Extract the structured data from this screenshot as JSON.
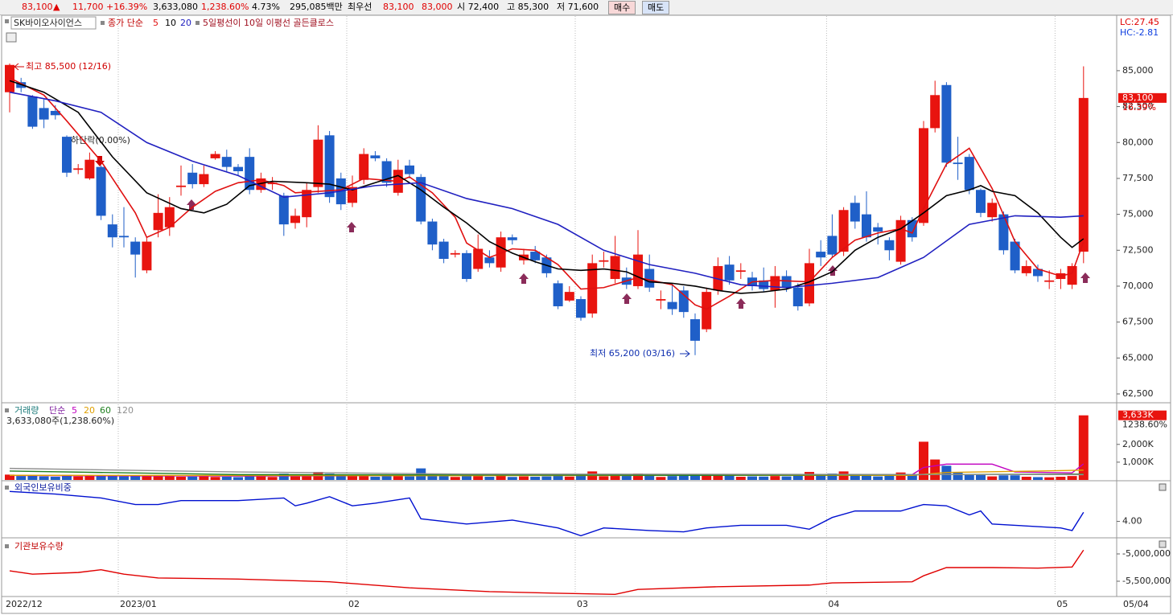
{
  "header": {
    "price": "83,100",
    "change_sign": "▲",
    "change": "11,700",
    "change_pct": "+16.39%",
    "volume": "3,633,080",
    "volume_ratio": "1,238.60%",
    "turnover": "4.73%",
    "amount": "295,085백만",
    "best_label": "최우선",
    "ask": "83,100",
    "bid": "83,000",
    "open": "시 72,400",
    "high": "고 85,300",
    "low": "저 71,600",
    "buy": "매수",
    "sell": "매도"
  },
  "chart_data": [
    {
      "type": "candlestick",
      "title": "SK바이오사이언스",
      "legend_label": "종가 단순",
      "signal_text": "5일평선이 10일 이평선 골든클로스",
      "annotations": [
        "최고 85,500 (12/16)",
        "최저 65,200 (03/16)",
        "하단락(0.00%)"
      ],
      "lc": "LC:27.45",
      "hc": "HC:-2.81",
      "change_pct": "16.39%",
      "up_color": "#e8140f",
      "down_color": "#1f5fc8",
      "categories": [
        "2022/12",
        null,
        null,
        null,
        null,
        null,
        null,
        null,
        null,
        null,
        "2023/01",
        null,
        null,
        null,
        null,
        null,
        null,
        null,
        null,
        null,
        null,
        null,
        null,
        null,
        null,
        null,
        null,
        null,
        null,
        null,
        "02",
        null,
        null,
        null,
        null,
        null,
        null,
        null,
        null,
        null,
        null,
        null,
        null,
        null,
        null,
        null,
        null,
        null,
        null,
        null,
        "03",
        null,
        null,
        null,
        null,
        null,
        null,
        null,
        null,
        null,
        null,
        null,
        null,
        null,
        null,
        null,
        null,
        null,
        null,
        null,
        null,
        null,
        "04",
        null,
        null,
        null,
        null,
        null,
        null,
        null,
        null,
        null,
        null,
        null,
        null,
        null,
        null,
        null,
        null,
        null,
        null,
        null,
        "05",
        null,
        null
      ],
      "current_date": "05/04",
      "open": [
        83500,
        84200,
        83200,
        82400,
        82200,
        80400,
        78100,
        77500,
        78300,
        74300,
        73500,
        73100,
        71100,
        73900,
        74100,
        76900,
        77900,
        77100,
        78900,
        79000,
        78300,
        79000,
        76700,
        77100,
        76300,
        74400,
        74800,
        76900,
        80500,
        77500,
        75800,
        77400,
        79100,
        78700,
        76500,
        78400,
        77600,
        74500,
        73100,
        72200,
        72300,
        71200,
        72000,
        71300,
        73400,
        71800,
        72400,
        72000,
        70200,
        69000,
        69100,
        68100,
        71700,
        70500,
        70600,
        70000,
        71200,
        69000,
        68900,
        69700,
        67700,
        67000,
        69700,
        71500,
        71000,
        70600,
        70400,
        69700,
        70700,
        69900,
        68800,
        72400,
        73500,
        72400,
        75800,
        75000,
        74100,
        73200,
        71700,
        74600,
        74400,
        81000,
        84000,
        78600,
        79000,
        76700,
        74800,
        75000,
        73100,
        70900,
        71200,
        70300,
        70500,
        70100,
        72400
      ],
      "high": [
        85500,
        84500,
        83300,
        83000,
        82600,
        80500,
        78500,
        79300,
        78400,
        75000,
        75500,
        73400,
        73400,
        76400,
        76200,
        78400,
        78500,
        78400,
        79400,
        79500,
        78500,
        79600,
        77900,
        77600,
        76500,
        75400,
        77200,
        81200,
        80800,
        77900,
        77700,
        79600,
        79400,
        78900,
        78800,
        78800,
        77800,
        74700,
        73300,
        72500,
        72500,
        73600,
        72500,
        73800,
        73600,
        72600,
        72800,
        72200,
        70400,
        70000,
        69300,
        72200,
        72400,
        73500,
        71300,
        73900,
        72200,
        69700,
        70200,
        70000,
        68100,
        69900,
        72000,
        72100,
        71600,
        71000,
        71300,
        71400,
        71100,
        70200,
        72600,
        73200,
        75000,
        75500,
        76300,
        76600,
        74400,
        73400,
        74900,
        74800,
        81500,
        84300,
        84200,
        80400,
        79200,
        76800,
        76100,
        75200,
        73300,
        71800,
        71500,
        71100,
        71200,
        71600,
        85300
      ],
      "low": [
        82100,
        83500,
        80950,
        81000,
        81600,
        77600,
        77800,
        77400,
        74600,
        72700,
        72700,
        70600,
        70900,
        73400,
        73500,
        76300,
        76800,
        76900,
        78800,
        78000,
        77700,
        76400,
        76500,
        76700,
        73500,
        74000,
        74100,
        76500,
        75800,
        75300,
        75500,
        77100,
        78700,
        76900,
        76300,
        77500,
        74300,
        72500,
        71600,
        72000,
        70300,
        71000,
        71300,
        71000,
        72900,
        71500,
        71600,
        70600,
        68400,
        68900,
        67600,
        67800,
        71300,
        70200,
        69800,
        69800,
        69600,
        68400,
        68000,
        67800,
        65200,
        66800,
        69400,
        70100,
        70500,
        69700,
        69600,
        68500,
        69600,
        68300,
        68600,
        71400,
        72000,
        72100,
        74000,
        73100,
        72900,
        71800,
        71500,
        73100,
        74200,
        80700,
        78300,
        77400,
        76400,
        74800,
        74500,
        72200,
        70900,
        70700,
        70300,
        69800,
        69800,
        69800,
        71600
      ],
      "close": [
        85400,
        83800,
        81100,
        81600,
        81900,
        77900,
        78200,
        78800,
        74900,
        73400,
        73400,
        72200,
        73100,
        75100,
        75500,
        77000,
        77100,
        77800,
        79200,
        78300,
        78000,
        76700,
        77500,
        77200,
        74300,
        74900,
        76700,
        80200,
        76200,
        75700,
        76900,
        79200,
        78900,
        77200,
        78100,
        77800,
        74500,
        72900,
        71900,
        72300,
        70500,
        72600,
        71600,
        73400,
        73200,
        72200,
        71800,
        70900,
        68600,
        69600,
        67800,
        71600,
        71800,
        72100,
        70100,
        72200,
        69900,
        69100,
        68400,
        68200,
        66200,
        69600,
        71400,
        70400,
        71100,
        70000,
        69800,
        70700,
        69900,
        68600,
        71600,
        72000,
        72200,
        75300,
        74500,
        73400,
        73800,
        72500,
        74600,
        73400,
        81000,
        83300,
        78600,
        78500,
        76700,
        75100,
        75800,
        72500,
        71100,
        71400,
        70700,
        70400,
        70900,
        71400,
        83100
      ],
      "series": [
        {
          "name": "5",
          "color": "#e01010",
          "x": [
            0,
            3,
            5,
            8,
            11,
            12,
            14,
            16,
            18,
            20,
            22,
            24,
            25,
            27,
            29,
            31,
            34,
            35,
            37,
            39,
            40,
            42,
            44,
            46,
            48,
            50,
            52,
            55,
            58,
            60,
            61,
            63,
            65,
            67,
            70,
            72,
            74,
            76,
            78,
            79,
            80,
            82,
            84,
            86,
            88,
            90,
            92,
            93,
            94
          ],
          "values": [
            84500,
            83300,
            81500,
            78700,
            75100,
            73400,
            74100,
            75500,
            76600,
            77200,
            77400,
            77000,
            76500,
            76600,
            76700,
            77500,
            77300,
            77600,
            76500,
            74800,
            73000,
            72000,
            72600,
            72500,
            71500,
            69800,
            69900,
            70600,
            70100,
            68700,
            68400,
            69300,
            70300,
            70400,
            70300,
            72000,
            73200,
            73700,
            74000,
            73700,
            75400,
            78500,
            79600,
            76800,
            73100,
            71200,
            70700,
            70900,
            73100
          ]
        },
        {
          "name": "10",
          "color": "#000000",
          "x": [
            0,
            3,
            6,
            9,
            12,
            15,
            17,
            19,
            21,
            23,
            26,
            28,
            30,
            32,
            34,
            36,
            38,
            40,
            42,
            44,
            46,
            48,
            50,
            52,
            54,
            56,
            58,
            60,
            62,
            64,
            66,
            68,
            70,
            72,
            74,
            76,
            78,
            80,
            82,
            84,
            85,
            86,
            88,
            90,
            92,
            93,
            94
          ],
          "values": [
            84300,
            83500,
            82100,
            79000,
            76500,
            75400,
            75100,
            75700,
            77000,
            77300,
            77200,
            77100,
            76700,
            77200,
            77700,
            76700,
            75500,
            74400,
            73100,
            72300,
            71700,
            71200,
            71100,
            71200,
            71000,
            70300,
            70200,
            70000,
            69700,
            69500,
            69600,
            69800,
            70300,
            71000,
            72500,
            73400,
            74000,
            75100,
            76300,
            76700,
            77000,
            76600,
            76300,
            75100,
            73400,
            72700,
            73300
          ]
        },
        {
          "name": "20",
          "color": "#2020c0",
          "x": [
            0,
            4,
            8,
            12,
            16,
            20,
            24,
            28,
            32,
            36,
            40,
            44,
            48,
            52,
            56,
            60,
            64,
            68,
            72,
            76,
            80,
            84,
            88,
            92,
            94
          ],
          "values": [
            83500,
            82900,
            82100,
            80000,
            78700,
            77700,
            76200,
            76500,
            77000,
            77200,
            76100,
            75400,
            74300,
            72500,
            71500,
            70900,
            70100,
            69900,
            70200,
            70600,
            72000,
            74300,
            74900,
            74800,
            74900
          ]
        }
      ],
      "ylim": [
        61940,
        88800
      ],
      "yticks": [
        {
          "value": 62500,
          "label": "62,500"
        },
        {
          "value": 65000,
          "label": "65,000"
        },
        {
          "value": 67500,
          "label": "67,500"
        },
        {
          "value": 70000,
          "label": "70,000"
        },
        {
          "value": 72500,
          "label": "72,500"
        },
        {
          "value": 75000,
          "label": "75,000"
        },
        {
          "value": 77500,
          "label": "77,500"
        },
        {
          "value": 80000,
          "label": "80,000"
        },
        {
          "value": 82500,
          "label": "82,500"
        },
        {
          "value": 85000,
          "label": "85,000"
        }
      ]
    },
    {
      "type": "bar",
      "title": "거래량",
      "legend_label": "단순",
      "subtitle": "3,633,080주(1,238.60%)",
      "last_label": "3,633K",
      "last_ratio": "1238.60%",
      "values": [
        300000,
        220000,
        260000,
        200000,
        180000,
        280000,
        200000,
        240000,
        260000,
        230000,
        200000,
        220000,
        260000,
        230000,
        210000,
        180000,
        190000,
        200000,
        170000,
        180000,
        160000,
        220000,
        200000,
        170000,
        350000,
        200000,
        280000,
        450000,
        350000,
        240000,
        220000,
        260000,
        180000,
        220000,
        240000,
        200000,
        650000,
        300000,
        240000,
        170000,
        260000,
        220000,
        180000,
        250000,
        170000,
        200000,
        180000,
        200000,
        260000,
        190000,
        250000,
        480000,
        210000,
        260000,
        230000,
        360000,
        260000,
        170000,
        220000,
        240000,
        330000,
        300000,
        320000,
        240000,
        180000,
        200000,
        190000,
        220000,
        200000,
        240000,
        450000,
        250000,
        360000,
        480000,
        300000,
        320000,
        200000,
        240000,
        420000,
        300000,
        2150000,
        1150000,
        800000,
        420000,
        330000,
        300000,
        200000,
        260000,
        260000,
        180000,
        160000,
        150000,
        180000,
        220000,
        3633080
      ],
      "series": [
        {
          "name": "5",
          "color": "#c000c0",
          "x": [
            0,
            20,
            40,
            60,
            79,
            80,
            82,
            86,
            88,
            93,
            94
          ],
          "values": [
            250000,
            220000,
            260000,
            260000,
            300000,
            700000,
            890000,
            890000,
            450000,
            400000,
            900000
          ]
        },
        {
          "name": "20",
          "color": "#e0a000",
          "x": [
            0,
            40,
            60,
            79,
            82,
            90,
            94
          ],
          "values": [
            260000,
            240000,
            260000,
            260000,
            420000,
            500000,
            550000
          ]
        },
        {
          "name": "60",
          "color": "#208020",
          "x": [
            0,
            20,
            60,
            94
          ],
          "values": [
            500000,
            300000,
            260000,
            330000
          ]
        },
        {
          "name": "120",
          "color": "#909090",
          "x": [
            0,
            20,
            40,
            94
          ],
          "values": [
            650000,
            450000,
            330000,
            300000
          ]
        }
      ],
      "ylim": [
        0,
        4250000
      ],
      "yticks": [
        {
          "value": 1000000,
          "label": "1,000K"
        },
        {
          "value": 2000000,
          "label": "2,000K"
        }
      ]
    },
    {
      "type": "line",
      "title": "외국인보유비중",
      "series": [
        {
          "color": "#0010d0",
          "x": [
            0,
            4,
            8,
            11,
            13,
            15,
            20,
            24,
            25,
            26,
            28,
            30,
            32,
            35,
            36,
            40,
            44,
            48,
            50,
            52,
            56,
            59,
            61,
            64,
            68,
            70,
            72,
            74,
            78,
            80,
            82,
            84,
            85,
            86,
            88,
            92,
            93,
            94
          ],
          "values": [
            4.23,
            4.21,
            4.18,
            4.13,
            4.13,
            4.16,
            4.16,
            4.18,
            4.12,
            4.14,
            4.19,
            4.12,
            4.14,
            4.18,
            4.02,
            3.98,
            4.01,
            3.95,
            3.89,
            3.95,
            3.93,
            3.92,
            3.95,
            3.97,
            3.97,
            3.94,
            4.03,
            4.08,
            4.08,
            4.13,
            4.12,
            4.05,
            4.08,
            3.98,
            3.97,
            3.95,
            3.93,
            4.07
          ]
        }
      ],
      "ylim": [
        3.88,
        4.3
      ],
      "yticks": [
        {
          "value": 4,
          "label": "4.00"
        }
      ]
    },
    {
      "type": "line",
      "title": "기관보유수량",
      "series": [
        {
          "color": "#e00000",
          "x": [
            0,
            2,
            6,
            8,
            10,
            13,
            20,
            28,
            35,
            42,
            48,
            53,
            55,
            62,
            70,
            72,
            79,
            80,
            82,
            86,
            90,
            93,
            94
          ],
          "values": [
            -5310000,
            -5370000,
            -5340000,
            -5290000,
            -5370000,
            -5440000,
            -5460000,
            -5510000,
            -5620000,
            -5690000,
            -5720000,
            -5740000,
            -5650000,
            -5600000,
            -5570000,
            -5530000,
            -5510000,
            -5400000,
            -5250000,
            -5250000,
            -5260000,
            -5240000,
            -4930000
          ]
        }
      ],
      "ylim": [
        -5750000,
        -4750000
      ],
      "yticks": [
        {
          "value": -5000000,
          "label": "-5,000,000"
        },
        {
          "value": -5500000,
          "label": "-5,500,000"
        }
      ]
    }
  ]
}
